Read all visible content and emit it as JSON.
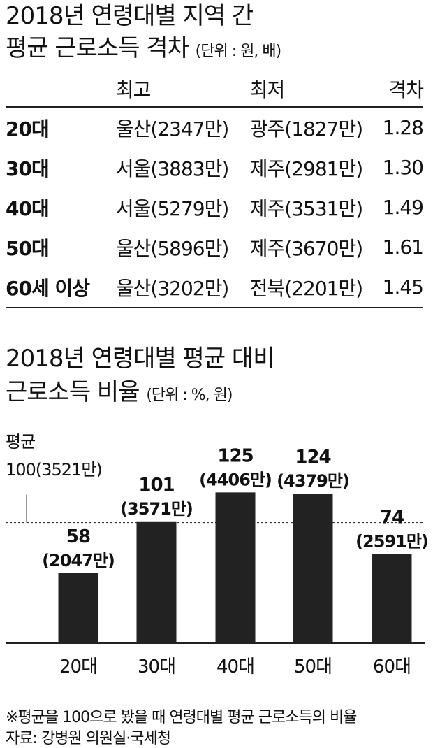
{
  "table_section": {
    "title_line1": "2018년 연령대별 지역 간",
    "title_line2": "평균 근로소득 격차",
    "unit": "(단위 : 원, 배)",
    "headers": [
      "",
      "최고",
      "최저",
      "격차"
    ],
    "rows": [
      {
        "age": "20대",
        "highest": "울산(2347만)",
        "lowest": "광주(1827만)",
        "gap": "1.28"
      },
      {
        "age": "30대",
        "highest": "서울(3883만)",
        "lowest": "제주(2981만)",
        "gap": "1.30"
      },
      {
        "age": "40대",
        "highest": "서울(5279만)",
        "lowest": "제주(3531만)",
        "gap": "1.49"
      },
      {
        "age": "50대",
        "highest": "울산(5896만)",
        "lowest": "제주(3670만)",
        "gap": "1.61"
      },
      {
        "age": "60세 이상",
        "highest": "울산(3202만)",
        "lowest": "전북(2201만)",
        "gap": "1.45"
      }
    ]
  },
  "chart_section": {
    "title_line1": "2018년 연령대별 평균 대비",
    "title_line2": "근로소득 비율",
    "unit": "(단위 : %, 원)"
  },
  "chart_data": {
    "type": "bar",
    "categories": [
      "20대",
      "30대",
      "40대",
      "50대",
      "60대"
    ],
    "values": [
      58,
      101,
      125,
      124,
      74
    ],
    "value_labels": [
      "58",
      "101",
      "125",
      "124",
      "74"
    ],
    "amount_labels": [
      "(2047만)",
      "(3571만)",
      "(4406만)",
      "(4379만)",
      "(2591만)"
    ],
    "reference": {
      "value": 100,
      "label_line1": "평균",
      "label_line2": "100(3521만)"
    },
    "ylim": [
      0,
      140
    ],
    "bar_color": "#222222",
    "grid": false
  },
  "footnotes": {
    "note": "※평균을 100으로 봤을 때 연령대별 평균 근로소득의 비율",
    "source": "자료: 강병원 의원실·국세청"
  }
}
